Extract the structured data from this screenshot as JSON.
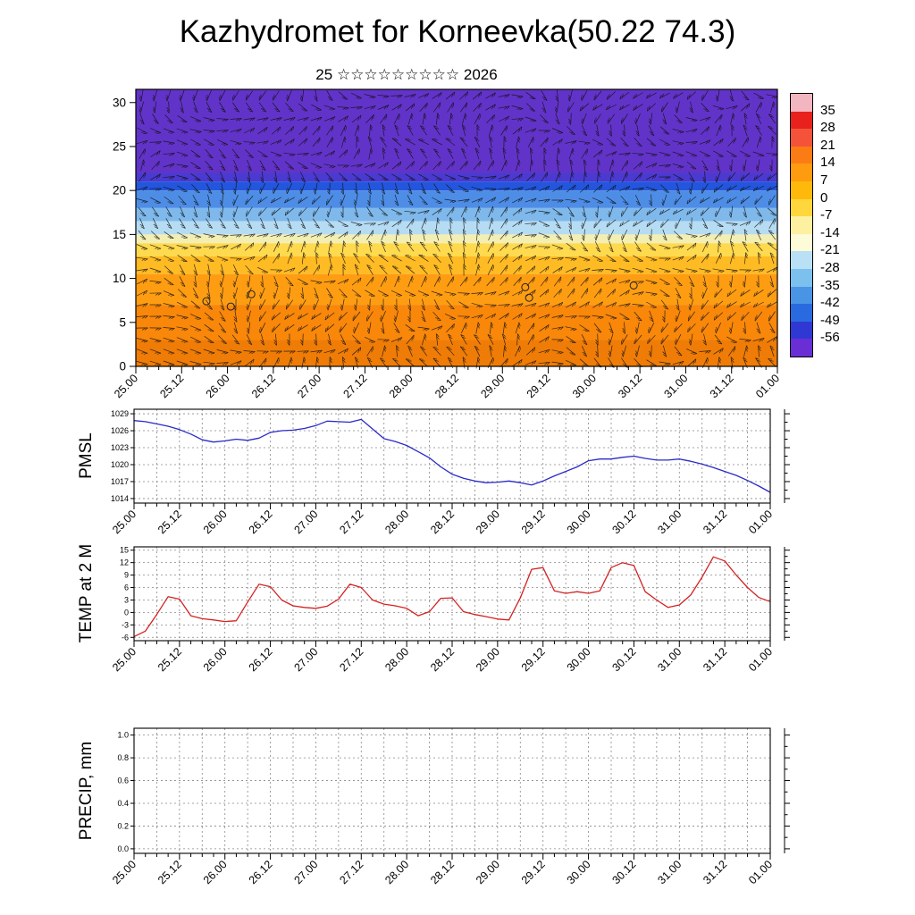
{
  "title": "Kazhydromet for Korneevka(50.22 74.3)",
  "subtitle": {
    "prefix": "25",
    "stars": "☆☆☆☆☆☆☆☆☆",
    "suffix": "2026"
  },
  "x_axis": {
    "tick_labels": [
      "25.00",
      "25.12",
      "26.00",
      "26.12",
      "27.00",
      "27.12",
      "28.00",
      "28.12",
      "29.00",
      "29.12",
      "30.00",
      "30.12",
      "31.00",
      "31.12",
      "01.00"
    ],
    "minor_tick_hours": 3,
    "label_every_hours": 12
  },
  "chart_data": [
    {
      "type": "heatmap",
      "name": "temperature-height-cross-section",
      "ylim": [
        0,
        31.5
      ],
      "y_ticks": [
        0,
        5,
        10,
        15,
        20,
        25,
        30
      ],
      "bands": [
        {
          "from": 22,
          "to": 31.5,
          "color": "#6233c8"
        },
        {
          "from": 21,
          "to": 22,
          "color": "#4a3ad0"
        },
        {
          "from": 20,
          "to": 21,
          "color": "#2356dc"
        },
        {
          "from": 18,
          "to": 20,
          "color": "#4e8de6"
        },
        {
          "from": 16.5,
          "to": 18,
          "color": "#7fb9ec"
        },
        {
          "from": 15,
          "to": 16.5,
          "color": "#b5dcf2"
        },
        {
          "from": 14,
          "to": 15,
          "color": "#f3eeb2"
        },
        {
          "from": 12.5,
          "to": 14,
          "color": "#ffd94e"
        },
        {
          "from": 10.5,
          "to": 12.5,
          "color": "#ffbb24"
        },
        {
          "from": 7,
          "to": 10.5,
          "color": "#ff9d12"
        },
        {
          "from": 3,
          "to": 7,
          "color": "#f8870a"
        },
        {
          "from": 0,
          "to": 3,
          "color": "#ef7c06"
        }
      ],
      "markers": [
        {
          "x_frac": 0.11,
          "height": 7.4
        },
        {
          "x_frac": 0.148,
          "height": 6.8
        },
        {
          "x_frac": 0.18,
          "height": 8.2
        },
        {
          "x_frac": 0.607,
          "height": 9.0
        },
        {
          "x_frac": 0.613,
          "height": 7.8
        },
        {
          "x_frac": 0.776,
          "height": 9.2
        }
      ],
      "colorbar": {
        "labels": [
          "35",
          "28",
          "21",
          "14",
          "7",
          "0",
          "-7",
          "-14",
          "-21",
          "-28",
          "-35",
          "-42",
          "-49",
          "-56"
        ],
        "colors": [
          "#f2b6c0",
          "#e8211d",
          "#f4533a",
          "#fb7c14",
          "#ff9b0e",
          "#ffb90a",
          "#ffd73c",
          "#fdf0a0",
          "#fdfbd8",
          "#b9e0f4",
          "#7cc0ee",
          "#4a94e6",
          "#2a6ae0",
          "#3038d4",
          "#6a2fd4"
        ]
      }
    },
    {
      "type": "line",
      "name": "PMSL",
      "ylabel": "PMSL",
      "line_color": "#2a2ac8",
      "ylim": [
        1013.2,
        1029.8
      ],
      "y_tick_values": [
        1014,
        1017,
        1020,
        1023,
        1026,
        1029
      ],
      "y_tick_labels": [
        "1014",
        "1017",
        "1020",
        "1023",
        "1026",
        "1029"
      ],
      "values": [
        1027.8,
        1027.6,
        1027.2,
        1026.8,
        1026.2,
        1025.4,
        1024.4,
        1024.0,
        1024.2,
        1024.5,
        1024.3,
        1024.7,
        1025.7,
        1026.0,
        1026.1,
        1026.4,
        1026.9,
        1027.7,
        1027.6,
        1027.5,
        1028.0,
        1026.3,
        1024.6,
        1024.1,
        1023.4,
        1022.3,
        1021.2,
        1019.6,
        1018.3,
        1017.6,
        1017.1,
        1016.8,
        1016.9,
        1017.1,
        1016.8,
        1016.4,
        1017.1,
        1018.0,
        1018.8,
        1019.6,
        1020.7,
        1021.0,
        1021.0,
        1021.3,
        1021.5,
        1021.1,
        1020.8,
        1020.8,
        1021.0,
        1020.6,
        1020.1,
        1019.5,
        1018.8,
        1018.1,
        1017.2,
        1016.2,
        1015.1
      ]
    },
    {
      "type": "line",
      "name": "TEMP at 2 M",
      "ylabel": "TEMP at 2 M",
      "line_color": "#d42222",
      "ylim": [
        -6.8,
        15.8
      ],
      "y_tick_values": [
        -6,
        -3,
        0,
        3,
        6,
        9,
        12,
        15
      ],
      "y_tick_labels": [
        "-6",
        "-3",
        "0",
        "3",
        "6",
        "9",
        "12",
        "15"
      ],
      "values": [
        -5.8,
        -4.5,
        -0.5,
        3.8,
        3.2,
        -0.8,
        -1.5,
        -1.8,
        -2.2,
        -2.0,
        2.5,
        6.8,
        6.2,
        3.0,
        1.6,
        1.2,
        1.0,
        1.5,
        3.2,
        6.8,
        6.0,
        3.0,
        2.0,
        1.6,
        1.0,
        -0.8,
        0.2,
        3.4,
        3.5,
        0.2,
        -0.5,
        -1.0,
        -1.6,
        -1.8,
        3.5,
        10.4,
        10.8,
        5.2,
        4.6,
        5.0,
        4.6,
        5.2,
        10.8,
        12.0,
        11.3,
        5.0,
        3.0,
        1.2,
        1.8,
        4.2,
        8.5,
        13.4,
        12.4,
        9.0,
        6.0,
        3.6,
        2.6
      ]
    },
    {
      "type": "line",
      "name": "PRECIP, mm",
      "ylabel": "PRECIP, mm",
      "line_color": "#2a2ac8",
      "ylim": [
        -0.04,
        1.06
      ],
      "y_tick_values": [
        0,
        0.2,
        0.4,
        0.6,
        0.8,
        1.0
      ],
      "y_tick_labels": [
        "0.0",
        "0.2",
        "0.4",
        "0.6",
        "0.8",
        "1.0"
      ],
      "values": []
    }
  ]
}
